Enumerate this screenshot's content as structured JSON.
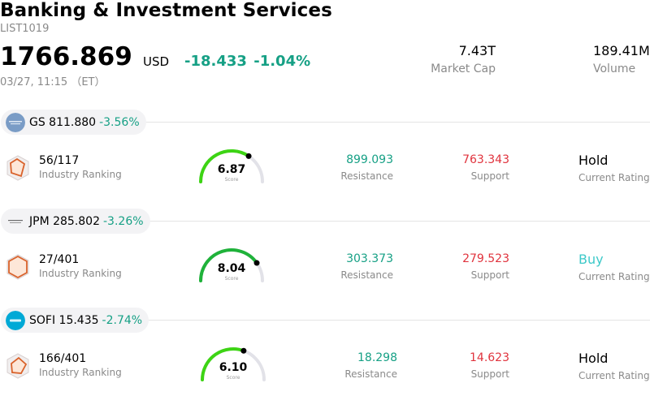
{
  "header": {
    "title": "Banking & Investment Services",
    "list_id": "LIST1019",
    "price": "1766.869",
    "currency": "USD",
    "change": "-18.433",
    "change_pct": "-1.04%",
    "timestamp": "03/27, 11:15 （ET）"
  },
  "stats": {
    "market_cap_value": "7.43T",
    "market_cap_label": "Market Cap",
    "volume_value": "189.41M",
    "volume_label": "Volume"
  },
  "colors": {
    "positive": "#16a085",
    "negative": "#e0333d",
    "buy": "#3ec9c9"
  },
  "stocks": [
    {
      "ticker_price": "GS 811.880",
      "change_pct": "-3.56%",
      "logo": "goldman-sachs-logo",
      "ranking": "56/117",
      "ranking_label": "Industry Ranking",
      "score": "6.87",
      "score_label": "Score",
      "score_value": 6.87,
      "resistance": "899.093",
      "resistance_label": "Resistance",
      "support": "763.343",
      "support_label": "Support",
      "rating": "Hold",
      "rating_label": "Current Rating"
    },
    {
      "ticker_price": "JPM 285.802",
      "change_pct": "-3.26%",
      "logo": "jpmorgan-logo",
      "ranking": "27/401",
      "ranking_label": "Industry Ranking",
      "score": "8.04",
      "score_label": "Score",
      "score_value": 8.04,
      "resistance": "303.373",
      "resistance_label": "Resistance",
      "support": "279.523",
      "support_label": "Support",
      "rating": "Buy",
      "rating_label": "Current Rating"
    },
    {
      "ticker_price": "SOFI 15.435",
      "change_pct": "-2.74%",
      "logo": "sofi-logo",
      "ranking": "166/401",
      "ranking_label": "Industry Ranking",
      "score": "6.10",
      "score_label": "Score",
      "score_value": 6.1,
      "resistance": "18.298",
      "resistance_label": "Resistance",
      "support": "14.623",
      "support_label": "Support",
      "rating": "Hold",
      "rating_label": "Current Rating"
    }
  ]
}
